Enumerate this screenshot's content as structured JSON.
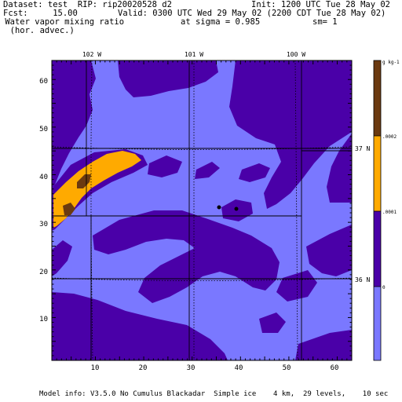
{
  "header": {
    "dataset_line": "Dataset: test  RIP: rip20020528 d2",
    "init_line": "Init: 1200 UTC Tue 28 May 02",
    "fcst_line": "Fcst:     15.00",
    "valid_line": "Valid: 0300 UTC Wed 29 May 02 (2200 CDT Tue 28 May 02)",
    "field_line": " Water vapor mixing ratio",
    "sigma_line": "at sigma = 0.985",
    "sm_line": "sm= 1",
    "advec_line": "  (hor. advec.)"
  },
  "map": {
    "top_lon_labels": [
      "102 W",
      "101 W",
      "100 W"
    ],
    "right_lat_labels": [
      "37 N",
      "36 N"
    ],
    "x_ticks": [
      "10",
      "20",
      "30",
      "40",
      "50",
      "60"
    ],
    "y_ticks": [
      "10",
      "20",
      "30",
      "40",
      "50",
      "60"
    ],
    "x_range": [
      1,
      63
    ],
    "y_range": [
      1,
      64
    ]
  },
  "colorbar": {
    "unit_label": "g kg-1",
    "levels": [
      ".0002",
      ".0001",
      "0"
    ],
    "colors": {
      "top": "#6b3a10",
      "upper": "#ffaa00",
      "middle": "#4a00a8",
      "bottom": "#7a78ff"
    }
  },
  "footer": {
    "model_info": "Model info: V3.5.0 No Cumulus Blackadar  Simple ice    4 km,  29 levels,    10 sec"
  }
}
